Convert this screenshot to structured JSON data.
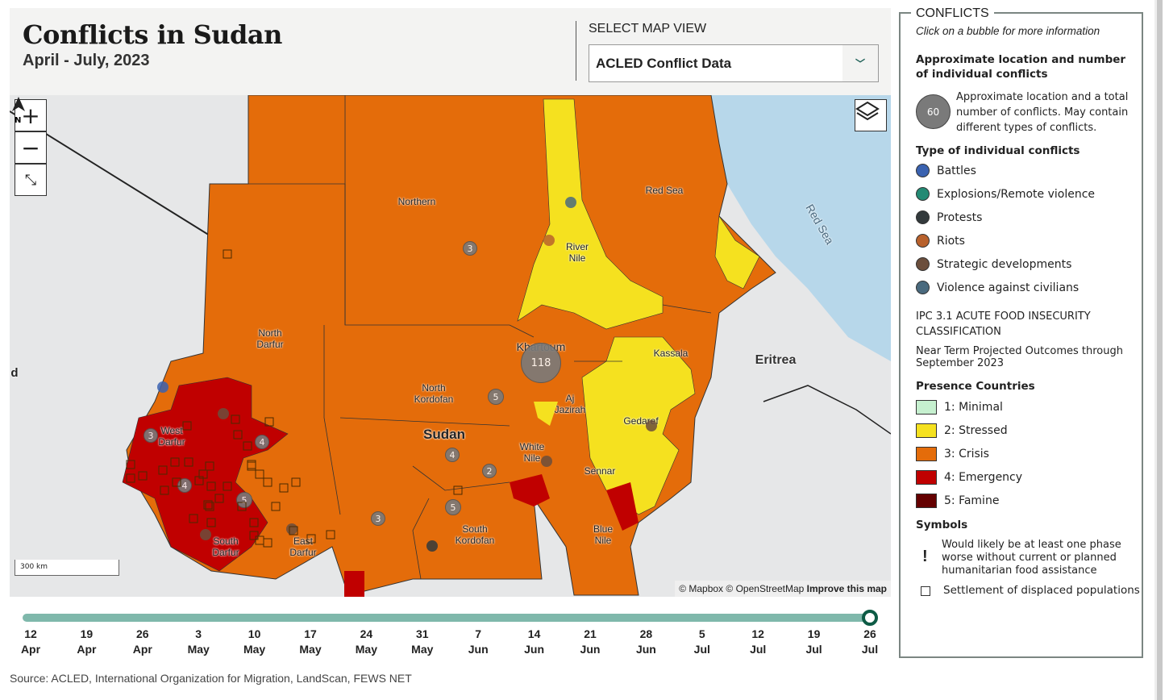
{
  "header": {
    "title": "Conflicts in Sudan",
    "subtitle": "April - July, 2023",
    "view_label": "SELECT MAP VIEW",
    "view_selected": "ACLED Conflict Data"
  },
  "map": {
    "controls": {
      "zoom_in": "+",
      "zoom_out": "−"
    },
    "scale": "300 km",
    "attribution": {
      "mapbox": "© Mapbox",
      "osm": "© OpenStreetMap",
      "improve": "Improve this map"
    },
    "labels": [
      "Northern",
      "Red Sea",
      "River\nNile",
      "North\nDarfur",
      "North\nKordofan",
      "Khartoum",
      "Kassala",
      "Aj\nJazirah",
      "Gedaref",
      "White\nNile",
      "Sennar",
      "Blue\nNile",
      "South\nKordofan",
      "West\nDarfur",
      "South\nDarfur",
      "East\nDarfur",
      "Sudan",
      "Eritrea",
      "Red Sea",
      "d"
    ],
    "bubbles": [
      "3",
      "118",
      "5",
      "4",
      "2",
      "5",
      "3",
      "3",
      "4",
      "4",
      "5"
    ],
    "colors": {
      "crisis": "#e46c0a",
      "stressed": "#f5e11f",
      "emergency": "#c00000",
      "sea": "#b7d7ea",
      "land": "#e6e7e8"
    }
  },
  "timeline": {
    "ticks": [
      [
        "12",
        "Apr"
      ],
      [
        "19",
        "Apr"
      ],
      [
        "26",
        "Apr"
      ],
      [
        "3",
        "May"
      ],
      [
        "10",
        "May"
      ],
      [
        "17",
        "May"
      ],
      [
        "24",
        "May"
      ],
      [
        "31",
        "May"
      ],
      [
        "7",
        "Jun"
      ],
      [
        "14",
        "Jun"
      ],
      [
        "21",
        "Jun"
      ],
      [
        "28",
        "Jun"
      ],
      [
        "5",
        "Jul"
      ],
      [
        "12",
        "Jul"
      ],
      [
        "19",
        "Jul"
      ],
      [
        "26",
        "Jul"
      ]
    ],
    "selected": "26 Jul"
  },
  "source": "Source: ACLED, International Organization for Migration, LandScan, FEWS NET",
  "legend": {
    "title": "CONFLICTS",
    "hint": "Click on a bubble for more information",
    "bubble_heading": "Approximate location and number of individual conflicts",
    "bubble_example": "60",
    "bubble_desc": "Approximate location and a total number of conflicts. May contain different types of conflicts.",
    "types_heading": "Type of individual conflicts",
    "types": [
      {
        "label": "Battles",
        "color": "#3a62b0"
      },
      {
        "label": "Explosions/Remote violence",
        "color": "#238a74"
      },
      {
        "label": "Protests",
        "color": "#333a3c"
      },
      {
        "label": "Riots",
        "color": "#b8612c"
      },
      {
        "label": "Strategic developments",
        "color": "#6b4e3c"
      },
      {
        "label": "Violence against civilians",
        "color": "#4a6a7e"
      }
    ],
    "ipc_heading": "IPC 3.1 ACUTE FOOD INSECURITY CLASSIFICATION",
    "ipc_sub": "Near Term Projected Outcomes through September 2023",
    "phases_heading": "Presence Countries",
    "phases": [
      {
        "label": "1: Minimal",
        "color": "#c6f0cf"
      },
      {
        "label": "2: Stressed",
        "color": "#f5e11f"
      },
      {
        "label": "3: Crisis",
        "color": "#e46c0a"
      },
      {
        "label": "4: Emergency",
        "color": "#c00000"
      },
      {
        "label": "5: Famine",
        "color": "#640000"
      }
    ],
    "symbols_heading": "Symbols",
    "symbol_exclaim": "!",
    "symbol_assist": "Would likely be at least one phase worse without current or planned humanitarian food assistance",
    "symbol_settlement": "Settlement of displaced populations"
  }
}
